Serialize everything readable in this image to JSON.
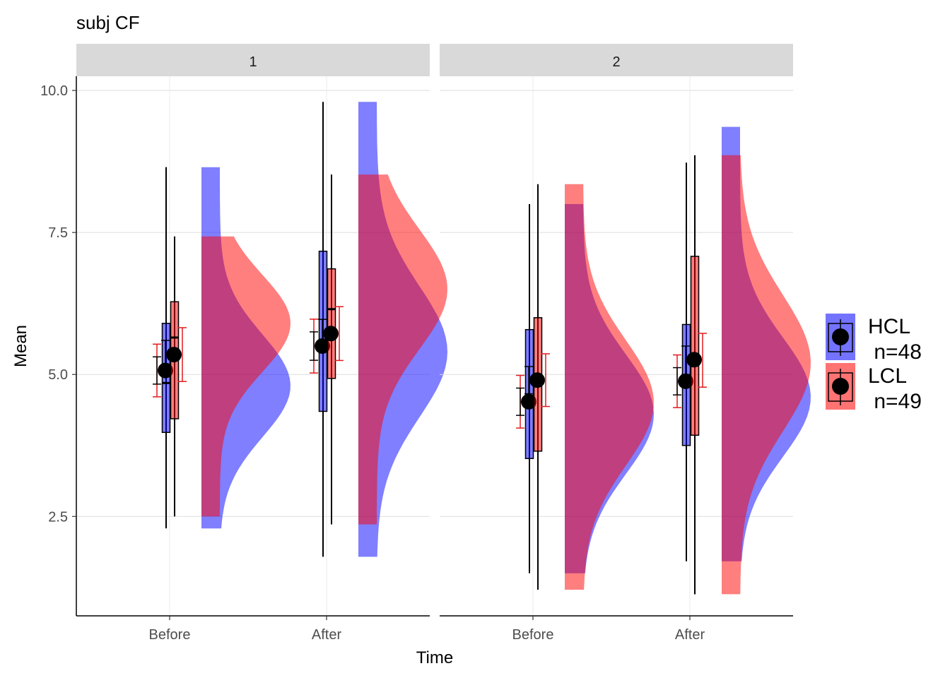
{
  "chart_data": {
    "type": "raincloud",
    "title": "subj CF",
    "xlabel": "Time",
    "ylabel": "Mean",
    "ylim": [
      0.75,
      10.25
    ],
    "yticks": [
      "2.5",
      "5.0",
      "7.5",
      "10.0"
    ],
    "categories": [
      "Before",
      "After"
    ],
    "legend_position": "right",
    "grid": true,
    "colors": {
      "HCL": "#0000FF",
      "LCL": "#FF0000",
      "errorbar": "#E41A1C"
    },
    "legend": [
      {
        "group": "HCL",
        "line1": "HCL",
        "line2": " n=48"
      },
      {
        "group": "LCL",
        "line1": "LCL",
        "line2": " n=49"
      }
    ],
    "panels": [
      {
        "strip": "1",
        "series": [
          {
            "group": "HCL",
            "points": [
              {
                "time": "Before",
                "mean": 5.07,
                "ci": [
                  4.83,
                  5.31
                ],
                "box": {
                  "min": 2.29,
                  "q1": 3.98,
                  "median": 4.85,
                  "q3": 5.9,
                  "max": 8.65
                },
                "density": {
                  "min": 2.29,
                  "max": 8.65,
                  "mode": 4.8,
                  "sd": 0.9
                }
              },
              {
                "time": "After",
                "mean": 5.5,
                "ci": [
                  5.25,
                  5.75
                ],
                "box": {
                  "min": 1.79,
                  "q1": 4.35,
                  "median": 5.45,
                  "q3": 7.17,
                  "max": 9.8
                },
                "density": {
                  "min": 1.79,
                  "max": 9.8,
                  "mode": 5.4,
                  "sd": 1.15
                }
              }
            ]
          },
          {
            "group": "LCL",
            "points": [
              {
                "time": "Before",
                "mean": 5.35,
                "ci": [
                  5.1,
                  5.6
                ],
                "box": {
                  "min": 2.5,
                  "q1": 4.22,
                  "median": 5.65,
                  "q3": 6.28,
                  "max": 7.43
                },
                "density": {
                  "min": 2.5,
                  "max": 7.43,
                  "mode": 5.9,
                  "sd": 0.85
                }
              },
              {
                "time": "After",
                "mean": 5.72,
                "ci": [
                  5.47,
                  5.97
                ],
                "box": {
                  "min": 2.36,
                  "q1": 4.93,
                  "median": 6.15,
                  "q3": 6.86,
                  "max": 8.52
                },
                "density": {
                  "min": 2.36,
                  "max": 8.52,
                  "mode": 6.5,
                  "sd": 1.05
                }
              }
            ]
          }
        ]
      },
      {
        "strip": "2",
        "series": [
          {
            "group": "HCL",
            "points": [
              {
                "time": "Before",
                "mean": 4.52,
                "ci": [
                  4.28,
                  4.76
                ],
                "box": {
                  "min": 1.5,
                  "q1": 3.52,
                  "median": 4.5,
                  "q3": 5.79,
                  "max": 8.0
                },
                "density": {
                  "min": 1.5,
                  "max": 8.0,
                  "mode": 4.3,
                  "sd": 1.05
                }
              },
              {
                "time": "After",
                "mean": 4.88,
                "ci": [
                  4.64,
                  5.12
                ],
                "box": {
                  "min": 1.71,
                  "q1": 3.75,
                  "median": 4.85,
                  "q3": 5.88,
                  "max": 8.73
                },
                "density": {
                  "min": 1.71,
                  "max": 9.36,
                  "mode": 4.6,
                  "sd": 1.05
                }
              }
            ]
          },
          {
            "group": "LCL",
            "points": [
              {
                "time": "Before",
                "mean": 4.9,
                "ci": [
                  4.66,
                  5.14
                ],
                "box": {
                  "min": 1.21,
                  "q1": 3.65,
                  "median": 4.85,
                  "q3": 6.0,
                  "max": 8.35
                },
                "density": {
                  "min": 1.21,
                  "max": 8.35,
                  "mode": 4.5,
                  "sd": 1.1
                }
              },
              {
                "time": "After",
                "mean": 5.26,
                "ci": [
                  5.0,
                  5.5
                ],
                "box": {
                  "min": 1.13,
                  "q1": 3.93,
                  "median": 5.3,
                  "q3": 7.08,
                  "max": 8.86
                },
                "density": {
                  "min": 1.13,
                  "max": 8.86,
                  "mode": 5.2,
                  "sd": 1.2
                }
              }
            ]
          }
        ]
      }
    ]
  }
}
